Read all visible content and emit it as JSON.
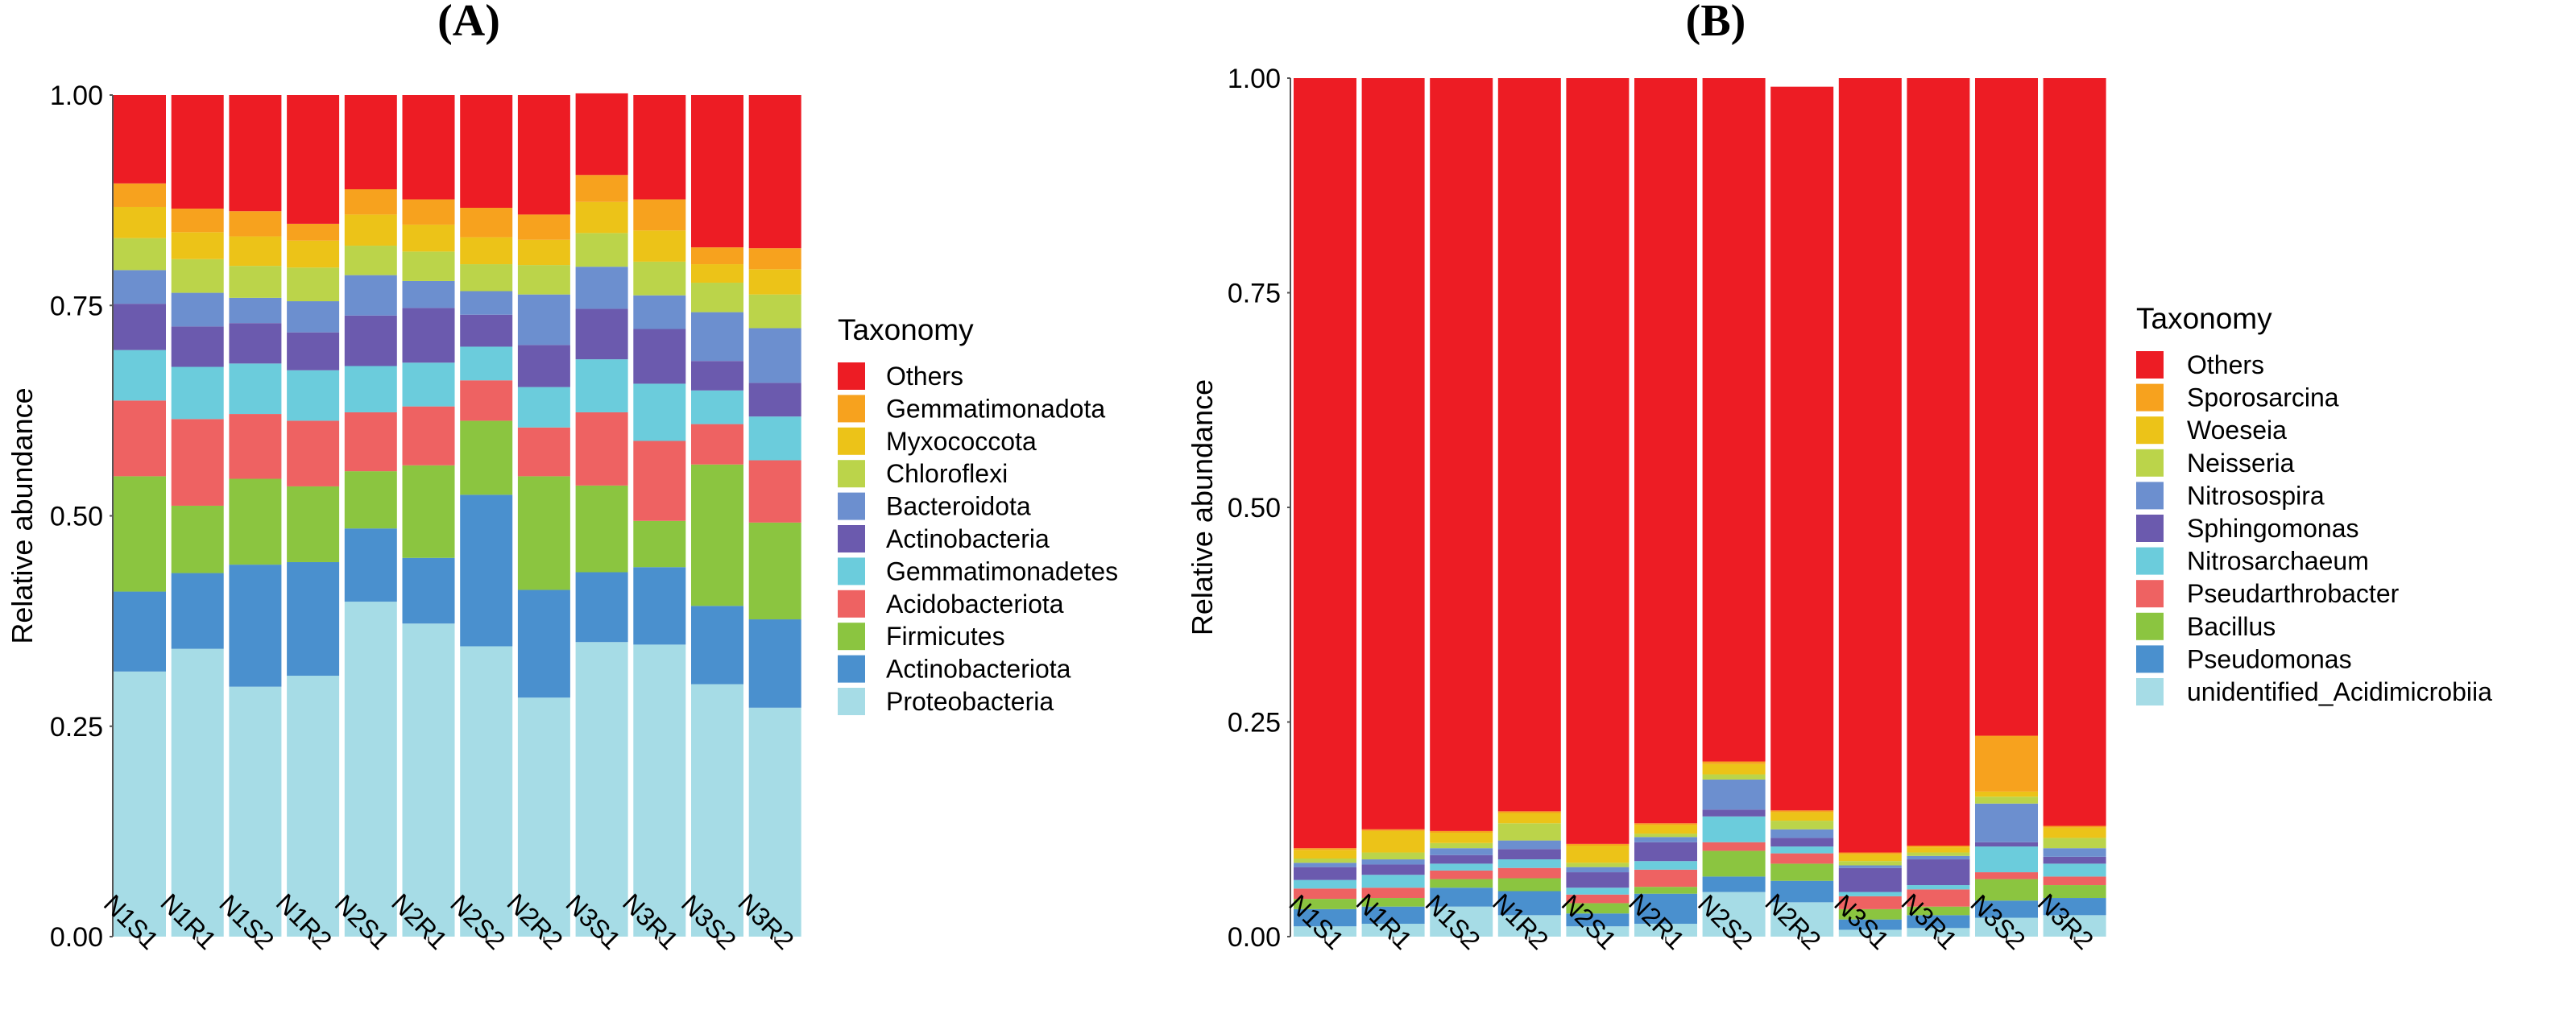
{
  "chart_data": [
    {
      "type": "bar",
      "stacked": true,
      "panel_label": "(A)",
      "ylabel": "Relative abundance",
      "xlabel": "",
      "ylim": [
        0,
        1
      ],
      "yticks": [
        "0.00",
        "0.25",
        "0.50",
        "0.75",
        "1.00"
      ],
      "legend_title": "Taxonomy",
      "legend_position": "right",
      "grid": false,
      "categories": [
        "N1S1",
        "N1R1",
        "N1S2",
        "N1R2",
        "N2S1",
        "N2R1",
        "N2S2",
        "N2R2",
        "N3S1",
        "N3R1",
        "N3S2",
        "N3R2"
      ],
      "series": [
        {
          "name": "Proteobacteria",
          "color": "#A6DCE6",
          "values": [
            0.315,
            0.342,
            0.297,
            0.31,
            0.398,
            0.372,
            0.345,
            0.284,
            0.35,
            0.347,
            0.3,
            0.272
          ]
        },
        {
          "name": "Actinobacteriota",
          "color": "#4A90CE",
          "values": [
            0.095,
            0.09,
            0.145,
            0.135,
            0.087,
            0.078,
            0.18,
            0.128,
            0.083,
            0.092,
            0.093,
            0.105
          ]
        },
        {
          "name": "Firmicutes",
          "color": "#8BC540",
          "values": [
            0.137,
            0.08,
            0.102,
            0.09,
            0.068,
            0.11,
            0.088,
            0.135,
            0.103,
            0.055,
            0.168,
            0.115
          ]
        },
        {
          "name": "Acidobacteriota",
          "color": "#EE6262",
          "values": [
            0.09,
            0.103,
            0.077,
            0.078,
            0.07,
            0.07,
            0.048,
            0.058,
            0.087,
            0.095,
            0.048,
            0.074
          ]
        },
        {
          "name": "Gemmatimonadetes",
          "color": "#6BCCDC",
          "values": [
            0.06,
            0.062,
            0.06,
            0.06,
            0.055,
            0.052,
            0.04,
            0.048,
            0.063,
            0.068,
            0.04,
            0.052
          ]
        },
        {
          "name": "Actinobacteria",
          "color": "#6B5AAE",
          "values": [
            0.055,
            0.048,
            0.048,
            0.045,
            0.06,
            0.065,
            0.038,
            0.05,
            0.06,
            0.065,
            0.035,
            0.04
          ]
        },
        {
          "name": "Bacteroidota",
          "color": "#6C8FCF",
          "values": [
            0.04,
            0.04,
            0.03,
            0.037,
            0.048,
            0.032,
            0.028,
            0.06,
            0.05,
            0.04,
            0.058,
            0.065
          ]
        },
        {
          "name": "Chloroflexi",
          "color": "#BBD44A",
          "values": [
            0.038,
            0.04,
            0.038,
            0.04,
            0.035,
            0.035,
            0.032,
            0.035,
            0.04,
            0.04,
            0.035,
            0.04
          ]
        },
        {
          "name": "Myxococcota",
          "color": "#ECC318",
          "values": [
            0.037,
            0.032,
            0.035,
            0.032,
            0.037,
            0.032,
            0.032,
            0.03,
            0.037,
            0.037,
            0.022,
            0.03
          ]
        },
        {
          "name": "Gemmatimonadota",
          "color": "#F7A21E",
          "values": [
            0.028,
            0.028,
            0.03,
            0.02,
            0.03,
            0.03,
            0.035,
            0.03,
            0.032,
            0.037,
            0.02,
            0.025
          ]
        },
        {
          "name": "Others",
          "color": "#ED1C24",
          "values": [
            0.105,
            0.135,
            0.138,
            0.153,
            0.112,
            0.124,
            0.134,
            0.142,
            0.097,
            0.124,
            0.181,
            0.182
          ]
        }
      ]
    },
    {
      "type": "bar",
      "stacked": true,
      "panel_label": "(B)",
      "ylabel": "Relative abundance",
      "xlabel": "",
      "ylim": [
        0,
        1
      ],
      "yticks": [
        "0.00",
        "0.25",
        "0.50",
        "0.75",
        "1.00"
      ],
      "legend_title": "Taxonomy",
      "legend_position": "right",
      "grid": false,
      "categories": [
        "N1S1",
        "N1R1",
        "N1S2",
        "N1R2",
        "N2S1",
        "N2R1",
        "N2S2",
        "N2R2",
        "N3S1",
        "N3R1",
        "N3S2",
        "N3R2"
      ],
      "series": [
        {
          "name": "unidentified_Acidimicrobiia",
          "color": "#A6DCE6",
          "values": [
            0.012,
            0.015,
            0.035,
            0.025,
            0.012,
            0.015,
            0.052,
            0.04,
            0.008,
            0.01,
            0.022,
            0.025
          ]
        },
        {
          "name": "Pseudomonas",
          "color": "#4A90CE",
          "values": [
            0.02,
            0.02,
            0.022,
            0.028,
            0.015,
            0.035,
            0.018,
            0.025,
            0.012,
            0.015,
            0.02,
            0.02
          ]
        },
        {
          "name": "Bacillus",
          "color": "#8BC540",
          "values": [
            0.012,
            0.01,
            0.01,
            0.015,
            0.012,
            0.008,
            0.03,
            0.02,
            0.012,
            0.01,
            0.025,
            0.015
          ]
        },
        {
          "name": "Pseudarthrobacter",
          "color": "#EE6262",
          "values": [
            0.012,
            0.012,
            0.01,
            0.012,
            0.01,
            0.02,
            0.01,
            0.012,
            0.015,
            0.02,
            0.008,
            0.01
          ]
        },
        {
          "name": "Nitrosarchaeum",
          "color": "#6BCCDC",
          "values": [
            0.01,
            0.015,
            0.008,
            0.01,
            0.008,
            0.01,
            0.03,
            0.008,
            0.005,
            0.005,
            0.03,
            0.015
          ]
        },
        {
          "name": "Sphingomonas",
          "color": "#6B5AAE",
          "values": [
            0.015,
            0.012,
            0.01,
            0.012,
            0.018,
            0.022,
            0.008,
            0.01,
            0.028,
            0.03,
            0.005,
            0.008
          ]
        },
        {
          "name": "Nitrosospira",
          "color": "#6C8FCF",
          "values": [
            0.005,
            0.006,
            0.008,
            0.01,
            0.006,
            0.006,
            0.035,
            0.01,
            0.003,
            0.004,
            0.045,
            0.01
          ]
        },
        {
          "name": "Neisseria",
          "color": "#BBD44A",
          "values": [
            0.005,
            0.008,
            0.006,
            0.02,
            0.005,
            0.004,
            0.006,
            0.01,
            0.005,
            0.004,
            0.008,
            0.012
          ]
        },
        {
          "name": "Woeseia",
          "color": "#ECC318",
          "values": [
            0.01,
            0.025,
            0.012,
            0.012,
            0.02,
            0.01,
            0.012,
            0.01,
            0.008,
            0.006,
            0.006,
            0.012
          ]
        },
        {
          "name": "Sporosarcina",
          "color": "#F7A21E",
          "values": [
            0.002,
            0.002,
            0.002,
            0.002,
            0.002,
            0.002,
            0.003,
            0.002,
            0.002,
            0.002,
            0.065,
            0.002
          ]
        },
        {
          "name": "Others",
          "color": "#ED1C24",
          "values": [
            0.897,
            0.875,
            0.877,
            0.854,
            0.892,
            0.868,
            0.796,
            0.843,
            0.902,
            0.894,
            0.766,
            0.871
          ]
        }
      ]
    }
  ]
}
